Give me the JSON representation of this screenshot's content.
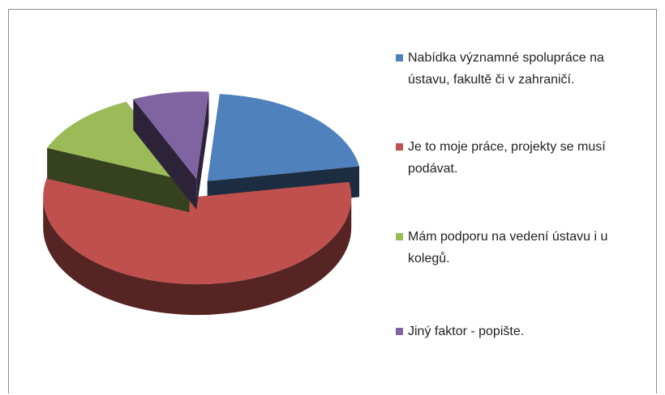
{
  "chart_data": {
    "type": "pie",
    "categories": [
      "Nabídka významné spolupráce na ústavu, fakultě či v zahraničí.",
      "Je to moje práce, projekty se musí podávat.",
      "Mám podporu na vedení ústavu i u kolegů.",
      "Jiný faktor - popište."
    ],
    "values": [
      21,
      59,
      12,
      8
    ],
    "colors": [
      "#4f81bd",
      "#c0504d",
      "#9bbb59",
      "#8064a2"
    ],
    "legend": "right"
  }
}
